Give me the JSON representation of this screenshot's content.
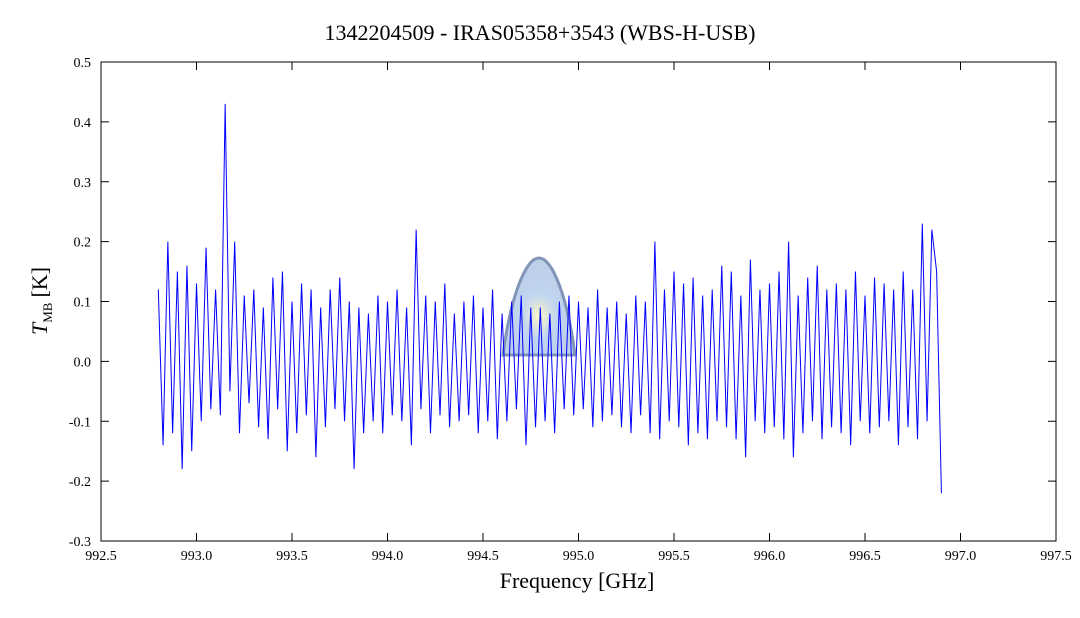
{
  "chart_data": {
    "type": "line",
    "title": "1342204509 - IRAS05358+3543 (WBS-H-USB)",
    "x_label": "Frequency [GHz]",
    "y_label": {
      "symbol": "T",
      "subscript": "MB",
      "unit": "[K]"
    },
    "color": "#0000ff",
    "xlim": [
      992.5,
      997.5
    ],
    "ylim": [
      -0.3,
      0.5
    ],
    "xticks": [
      992.5,
      {
        "value": 993,
        "label": "993.0"
      },
      993.5,
      {
        "value": 994,
        "label": "994.0"
      },
      994.5,
      {
        "value": 995,
        "label": "995.0"
      },
      995.5,
      {
        "value": 996,
        "label": "996.0"
      },
      996.5,
      {
        "value": 997,
        "label": "997.0"
      },
      997.5
    ],
    "yticks": [
      0.5,
      0.4,
      0.3,
      0.2,
      0.1,
      {
        "value": 0,
        "label": "0.0"
      },
      -0.1,
      -0.2,
      -0.3
    ],
    "x": [
      992.8,
      992.825,
      992.85,
      992.875,
      992.9,
      992.925,
      992.95,
      992.975,
      993.0,
      993.025,
      993.05,
      993.075,
      993.1,
      993.125,
      993.15,
      993.175,
      993.2,
      993.225,
      993.25,
      993.275,
      993.3,
      993.325,
      993.35,
      993.375,
      993.4,
      993.425,
      993.45,
      993.475,
      993.5,
      993.525,
      993.55,
      993.575,
      993.6,
      993.625,
      993.65,
      993.675,
      993.7,
      993.725,
      993.75,
      993.775,
      993.8,
      993.825,
      993.85,
      993.875,
      993.9,
      993.925,
      993.95,
      993.975,
      994.0,
      994.025,
      994.05,
      994.075,
      994.1,
      994.125,
      994.15,
      994.175,
      994.2,
      994.225,
      994.25,
      994.275,
      994.3,
      994.325,
      994.35,
      994.375,
      994.4,
      994.425,
      994.45,
      994.475,
      994.5,
      994.525,
      994.55,
      994.575,
      994.6,
      994.625,
      994.65,
      994.675,
      994.7,
      994.725,
      994.75,
      994.775,
      994.8,
      994.825,
      994.85,
      994.875,
      994.9,
      994.925,
      994.95,
      994.975,
      995.0,
      995.025,
      995.05,
      995.075,
      995.1,
      995.125,
      995.15,
      995.175,
      995.2,
      995.225,
      995.25,
      995.275,
      995.3,
      995.325,
      995.35,
      995.375,
      995.4,
      995.425,
      995.45,
      995.475,
      995.5,
      995.525,
      995.55,
      995.575,
      995.6,
      995.625,
      995.65,
      995.675,
      995.7,
      995.725,
      995.75,
      995.775,
      995.8,
      995.825,
      995.85,
      995.875,
      995.9,
      995.925,
      995.95,
      995.975,
      996.0,
      996.025,
      996.05,
      996.075,
      996.1,
      996.125,
      996.15,
      996.175,
      996.2,
      996.225,
      996.25,
      996.275,
      996.3,
      996.325,
      996.35,
      996.375,
      996.4,
      996.425,
      996.45,
      996.475,
      996.5,
      996.525,
      996.55,
      996.575,
      996.6,
      996.625,
      996.65,
      996.675,
      996.7,
      996.725,
      996.75,
      996.775,
      996.8,
      996.825,
      996.85,
      996.875,
      996.9
    ],
    "values": [
      0.12,
      -0.14,
      0.2,
      -0.12,
      0.15,
      -0.18,
      0.16,
      -0.15,
      0.13,
      -0.1,
      0.19,
      -0.08,
      0.12,
      -0.09,
      0.43,
      -0.05,
      0.2,
      -0.12,
      0.11,
      -0.07,
      0.12,
      -0.11,
      0.09,
      -0.13,
      0.14,
      -0.08,
      0.15,
      -0.15,
      0.1,
      -0.12,
      0.13,
      -0.09,
      0.12,
      -0.16,
      0.09,
      -0.11,
      0.12,
      -0.08,
      0.14,
      -0.1,
      0.1,
      -0.18,
      0.09,
      -0.12,
      0.08,
      -0.1,
      0.11,
      -0.12,
      0.1,
      -0.09,
      0.12,
      -0.1,
      0.09,
      -0.14,
      0.22,
      -0.08,
      0.11,
      -0.12,
      0.1,
      -0.09,
      0.13,
      -0.11,
      0.08,
      -0.1,
      0.1,
      -0.09,
      0.11,
      -0.12,
      0.09,
      -0.1,
      0.12,
      -0.13,
      0.08,
      -0.1,
      0.1,
      -0.08,
      0.11,
      -0.14,
      0.09,
      -0.11,
      0.09,
      -0.1,
      0.08,
      -0.12,
      0.1,
      -0.08,
      0.11,
      -0.09,
      0.1,
      -0.08,
      0.09,
      -0.11,
      0.12,
      -0.1,
      0.09,
      -0.09,
      0.1,
      -0.11,
      0.08,
      -0.12,
      0.11,
      -0.09,
      0.1,
      -0.12,
      0.2,
      -0.13,
      0.12,
      -0.1,
      0.15,
      -0.11,
      0.13,
      -0.14,
      0.14,
      -0.12,
      0.11,
      -0.13,
      0.12,
      -0.1,
      0.16,
      -0.11,
      0.15,
      -0.13,
      0.11,
      -0.16,
      0.17,
      -0.1,
      0.12,
      -0.12,
      0.13,
      -0.11,
      0.15,
      -0.13,
      0.2,
      -0.16,
      0.11,
      -0.12,
      0.14,
      -0.1,
      0.16,
      -0.13,
      0.12,
      -0.11,
      0.13,
      -0.12,
      0.12,
      -0.14,
      0.15,
      -0.1,
      0.11,
      -0.12,
      0.14,
      -0.11,
      0.13,
      -0.1,
      0.12,
      -0.14,
      0.15,
      -0.11,
      0.12,
      -0.13,
      0.23,
      -0.1,
      0.22,
      0.15,
      -0.22
    ]
  }
}
